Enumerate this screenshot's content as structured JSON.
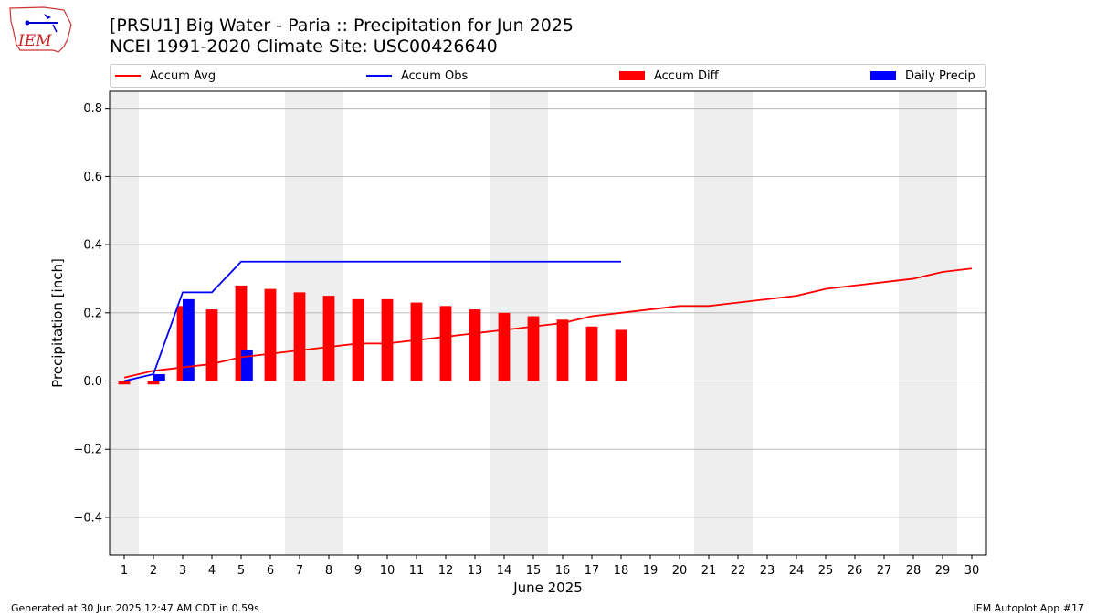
{
  "header": {
    "title_line1": "[PRSU1] Big Water - Paria :: Precipitation for Jun 2025",
    "title_line2": "NCEI 1991-2020 Climate Site: USC00426640",
    "logo_text": "IEM"
  },
  "footer": {
    "left": "Generated at 30 Jun 2025 12:47 AM CDT in 0.59s",
    "right": "IEM Autoplot App #17"
  },
  "colors": {
    "avg": "#ff0000",
    "obs": "#0000ff",
    "diff": "#ff0000",
    "daily": "#0000ff",
    "weekend": "#eeeeee",
    "grid": "#b0b0b0"
  },
  "legend": {
    "items": [
      {
        "label": "Accum Avg",
        "kind": "line",
        "color": "#ff0000"
      },
      {
        "label": "Accum Obs",
        "kind": "line",
        "color": "#0000ff"
      },
      {
        "label": "Accum Diff",
        "kind": "rect",
        "color": "#ff0000"
      },
      {
        "label": "Daily Precip",
        "kind": "rect",
        "color": "#0000ff"
      }
    ]
  },
  "chart_data": {
    "type": "bar",
    "xlabel": "June 2025",
    "ylabel": "Precipitation [inch]",
    "xlim": [
      0.5,
      30.5
    ],
    "ylim": [
      -0.51,
      0.85
    ],
    "yticks": [
      -0.4,
      -0.2,
      0.0,
      0.2,
      0.4,
      0.6,
      0.8
    ],
    "ytick_labels": [
      "−0.4",
      "−0.2",
      "0.0",
      "0.2",
      "0.4",
      "0.6",
      "0.8"
    ],
    "grid": "horizontal",
    "legend_position": "top",
    "days": [
      1,
      2,
      3,
      4,
      5,
      6,
      7,
      8,
      9,
      10,
      11,
      12,
      13,
      14,
      15,
      16,
      17,
      18,
      19,
      20,
      21,
      22,
      23,
      24,
      25,
      26,
      27,
      28,
      29,
      30
    ],
    "weekend_days": [
      1,
      7,
      8,
      14,
      15,
      21,
      22,
      28,
      29
    ],
    "series": [
      {
        "name": "Accum Avg",
        "kind": "line",
        "x": [
          1,
          2,
          3,
          4,
          5,
          6,
          7,
          8,
          9,
          10,
          11,
          12,
          13,
          14,
          15,
          16,
          17,
          18,
          19,
          20,
          21,
          22,
          23,
          24,
          25,
          26,
          27,
          28,
          29,
          30
        ],
        "values": [
          0.01,
          0.03,
          0.04,
          0.05,
          0.07,
          0.08,
          0.09,
          0.1,
          0.11,
          0.11,
          0.12,
          0.13,
          0.14,
          0.15,
          0.16,
          0.17,
          0.19,
          0.2,
          0.21,
          0.22,
          0.22,
          0.23,
          0.24,
          0.25,
          0.27,
          0.28,
          0.29,
          0.3,
          0.32,
          0.33
        ]
      },
      {
        "name": "Accum Obs",
        "kind": "line",
        "x": [
          1,
          2,
          3,
          4,
          5,
          6,
          7,
          8,
          9,
          10,
          11,
          12,
          13,
          14,
          15,
          16,
          17,
          18
        ],
        "values": [
          0.0,
          0.02,
          0.26,
          0.26,
          0.35,
          0.35,
          0.35,
          0.35,
          0.35,
          0.35,
          0.35,
          0.35,
          0.35,
          0.35,
          0.35,
          0.35,
          0.35,
          0.35
        ]
      },
      {
        "name": "Accum Diff",
        "kind": "bar",
        "x": [
          1,
          2,
          3,
          4,
          5,
          6,
          7,
          8,
          9,
          10,
          11,
          12,
          13,
          14,
          15,
          16,
          17,
          18
        ],
        "values": [
          -0.01,
          -0.01,
          0.22,
          0.21,
          0.28,
          0.27,
          0.26,
          0.25,
          0.24,
          0.24,
          0.23,
          0.22,
          0.21,
          0.2,
          0.19,
          0.18,
          0.16,
          0.15
        ]
      },
      {
        "name": "Daily Precip",
        "kind": "bar",
        "x": [
          2,
          3,
          5
        ],
        "values": [
          0.02,
          0.24,
          0.09
        ]
      }
    ]
  }
}
